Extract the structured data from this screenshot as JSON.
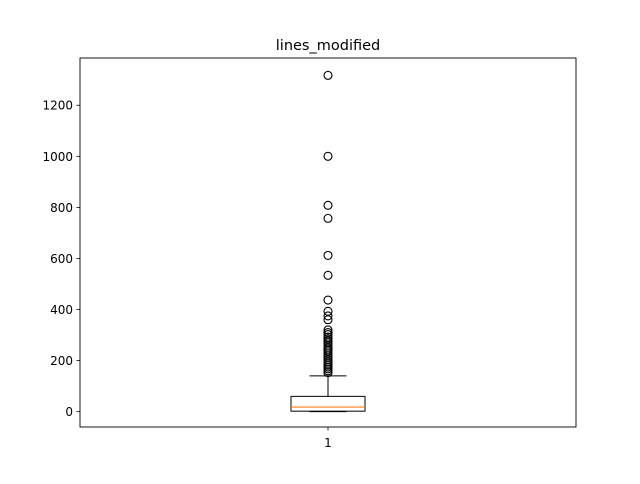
{
  "chart_data": {
    "type": "box",
    "title": "lines_modified",
    "xlabel": "",
    "ylabel": "",
    "categories": [
      "1"
    ],
    "ylim": [
      -60,
      1385
    ],
    "yticks": [
      0,
      200,
      400,
      600,
      800,
      1000,
      1200
    ],
    "ytick_labels": [
      "0",
      "200",
      "400",
      "600",
      800,
      "1000",
      "1200"
    ],
    "grid": false,
    "box": {
      "whisker_low": 0,
      "q1": 2,
      "median": 18,
      "q3": 60,
      "whisker_high": 140
    },
    "outliers": [
      1317,
      1000,
      808,
      757,
      612,
      534,
      437,
      393,
      375,
      360,
      320,
      310,
      302,
      292,
      285,
      277,
      270,
      260,
      252,
      245,
      238,
      230,
      222,
      214,
      205,
      197,
      190,
      182,
      175,
      168,
      160,
      153
    ],
    "colors": {
      "box": "#000000",
      "median": "#ff7f0e",
      "flier_edge": "#000000"
    }
  }
}
